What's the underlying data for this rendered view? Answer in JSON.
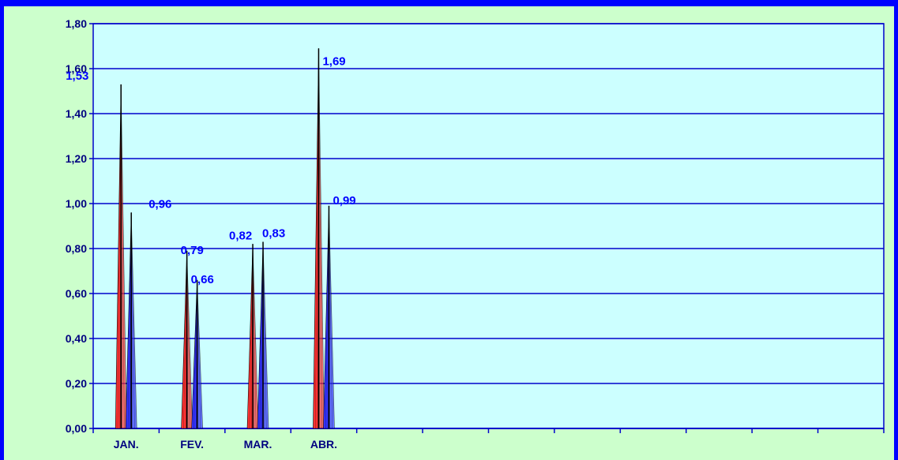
{
  "colors": {
    "outer_border": "#0000ff",
    "frame_background": "#ccffcc",
    "plot_background": "#ccffff",
    "gridline": "#0000cc",
    "axis": "#0000cc",
    "series_1_fill": "#ff3333",
    "series_2_fill": "#3333ff",
    "tick_text": "#000080",
    "data_label_text": "#0000ff"
  },
  "chart_data": {
    "type": "bar",
    "bar_shape": "cone",
    "title": "",
    "xlabel": "",
    "ylabel": "",
    "ylim": [
      0,
      1.8
    ],
    "yticks": [
      "0,00",
      "0,20",
      "0,40",
      "0,60",
      "0,80",
      "1,00",
      "1,20",
      "1,40",
      "1,60",
      "1,80"
    ],
    "categories": [
      "JAN.",
      "FEV.",
      "MAR.",
      "ABR.",
      "",
      "",
      "",
      "",
      "",
      "",
      "",
      ""
    ],
    "series": [
      {
        "values": [
          1.53,
          0.79,
          0.82,
          1.69,
          null,
          null,
          null,
          null,
          null,
          null,
          null,
          null
        ],
        "labels": [
          "1,53",
          "0,79",
          "0,82",
          "1,69",
          "",
          "",
          "",
          "",
          "",
          "",
          "",
          ""
        ],
        "color": "#ff3333"
      },
      {
        "values": [
          0.96,
          0.66,
          0.83,
          0.99,
          null,
          null,
          null,
          null,
          null,
          null,
          null,
          null
        ],
        "labels": [
          "0,96",
          "0,66",
          "0,83",
          "0,99",
          "",
          "",
          "",
          "",
          "",
          "",
          "",
          ""
        ],
        "color": "#3333ff"
      }
    ],
    "grid": true,
    "legend": "none"
  }
}
